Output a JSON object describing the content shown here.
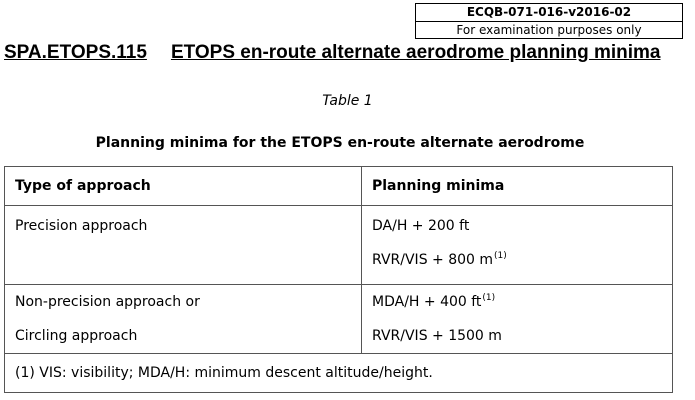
{
  "reference_box": {
    "code": "ECQB-071-016-v2016-02",
    "note": "For examination purposes only"
  },
  "heading": {
    "reference": "SPA.ETOPS.115",
    "title": "ETOPS en-route alternate aerodrome planning minima"
  },
  "table_label": "Table 1",
  "table_caption": "Planning minima for the ETOPS en-route alternate aerodrome",
  "table": {
    "headers": {
      "approach": "Type of approach",
      "minima": "Planning minima"
    },
    "rows": [
      {
        "approach": [
          "Precision approach"
        ],
        "minima": [
          {
            "text": "DA/H + 200 ft",
            "sup": ""
          },
          {
            "text": "RVR/VIS + 800 m",
            "sup": "(1)"
          }
        ]
      },
      {
        "approach": [
          "Non-precision approach or",
          "Circling approach"
        ],
        "minima": [
          {
            "text": "MDA/H + 400 ft",
            "sup": "(1)"
          },
          {
            "text": "RVR/VIS + 1500 m",
            "sup": ""
          }
        ]
      }
    ],
    "footnote": "(1) VIS: visibility; MDA/H: minimum descent altitude/height."
  }
}
